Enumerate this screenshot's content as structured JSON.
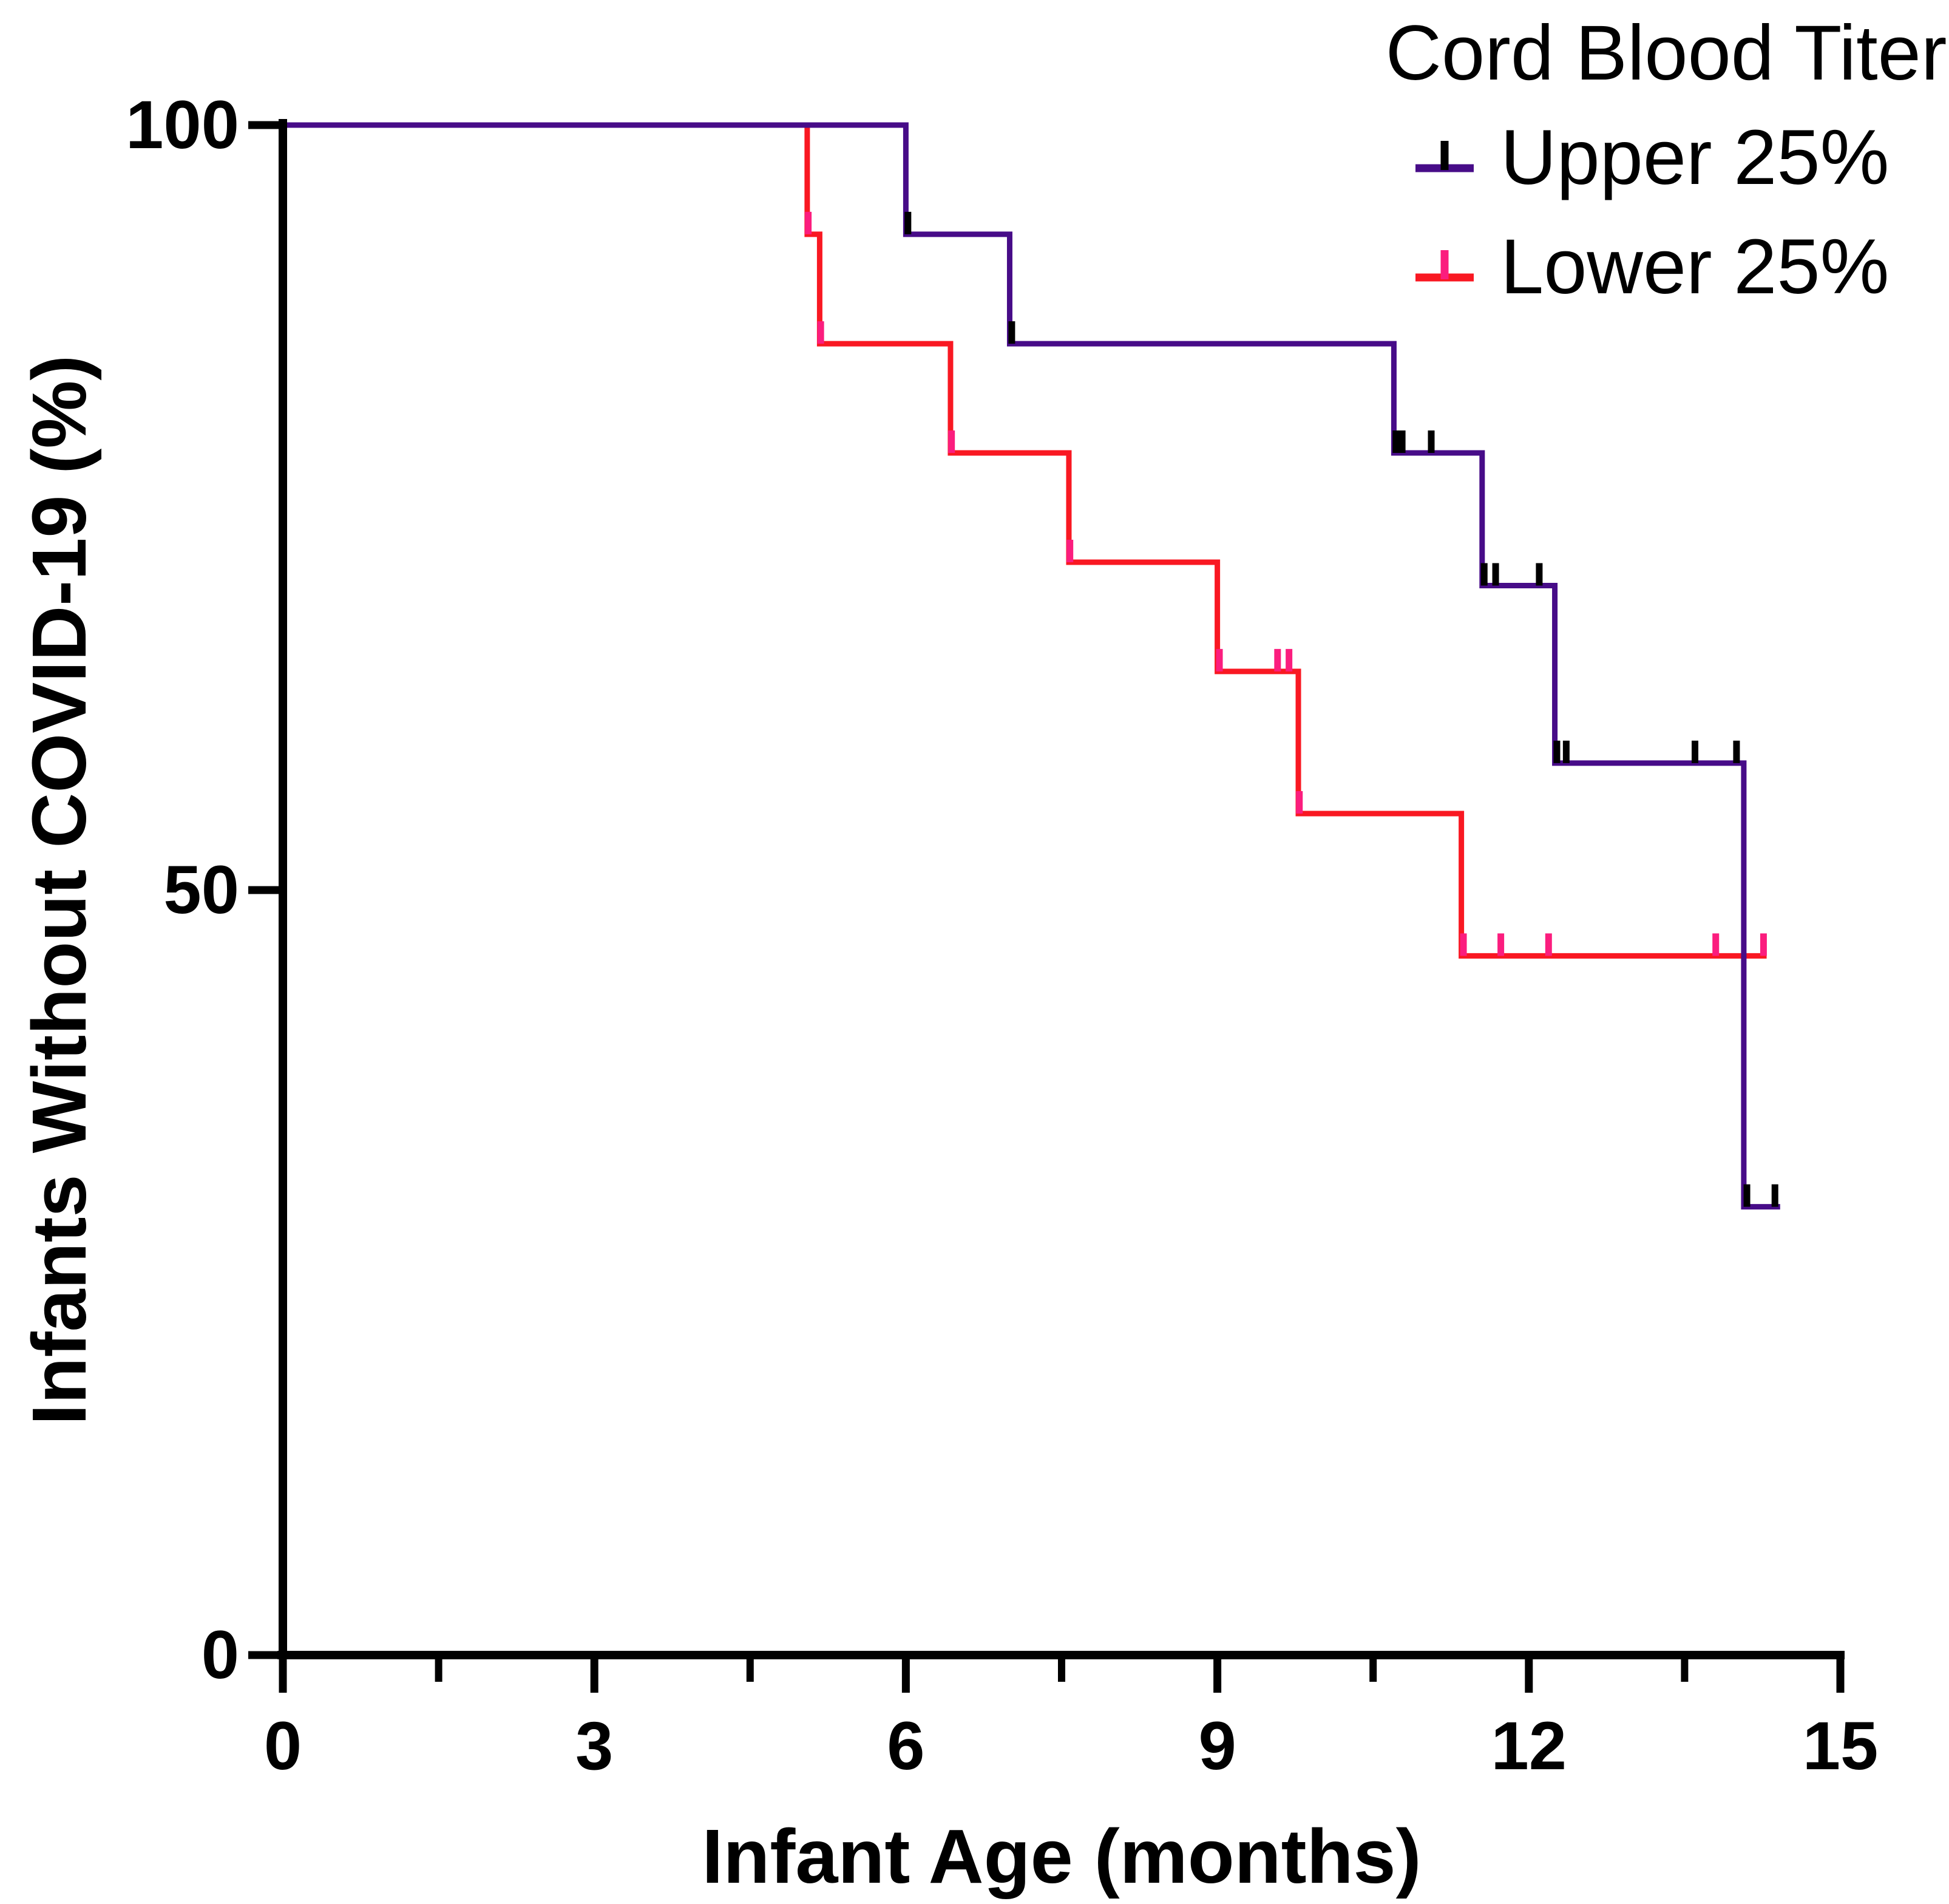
{
  "chart_data": {
    "type": "line",
    "subtype": "kaplan_meier_step_survival",
    "title": "",
    "xlabel": "Infant Age (months)",
    "ylabel": "Infants Without COVID-19 (%)",
    "xlim": [
      0,
      15
    ],
    "ylim": [
      0,
      100
    ],
    "grid": false,
    "axis_color": "#000000",
    "x_major_ticks": [
      0,
      3,
      6,
      9,
      12,
      15
    ],
    "x_major_tick_labels": [
      "0",
      "3",
      "6",
      "9",
      "12",
      "15"
    ],
    "x_minor_ticks": [
      1.5,
      4.5,
      7.5,
      10.5,
      13.5
    ],
    "y_ticks": [
      100,
      50,
      0
    ],
    "y_tick_labels": [
      "100",
      "50",
      "0"
    ],
    "legend": {
      "title": "Cord Blood Titer",
      "position": "top-right",
      "entries": [
        {
          "label": "Upper 25%",
          "line_color": "#470C88",
          "censor_tick_color": "#000000"
        },
        {
          "label": "Lower 25%",
          "line_color": "#F91822",
          "censor_tick_color": "#FB1D7E"
        }
      ]
    },
    "series": [
      {
        "name": "Upper 25%",
        "color": "#470C88",
        "censor_color": "#000000",
        "steps_month_percent": [
          [
            0,
            100
          ],
          [
            6.0,
            92.86
          ],
          [
            7.0,
            85.71
          ],
          [
            10.7,
            78.57
          ],
          [
            11.55,
            69.9
          ],
          [
            12.25,
            58.3
          ],
          [
            14.07,
            29.3
          ]
        ],
        "end_month": 14.42,
        "censor_marks_month_percent": [
          [
            6.02,
            92.86
          ],
          [
            7.02,
            85.71
          ],
          [
            10.72,
            78.57
          ],
          [
            10.78,
            78.57
          ],
          [
            11.06,
            78.57
          ],
          [
            11.57,
            69.9
          ],
          [
            11.68,
            69.9
          ],
          [
            12.1,
            69.9
          ],
          [
            12.27,
            58.3
          ],
          [
            12.36,
            58.3
          ],
          [
            13.6,
            58.3
          ],
          [
            14.0,
            58.3
          ],
          [
            14.1,
            29.3
          ],
          [
            14.37,
            29.3
          ]
        ]
      },
      {
        "name": "Lower 25%",
        "color": "#F91822",
        "censor_color": "#FB1D7E",
        "steps_month_percent": [
          [
            0,
            100
          ],
          [
            5.05,
            92.86
          ],
          [
            5.17,
            85.71
          ],
          [
            6.43,
            78.57
          ],
          [
            7.57,
            71.43
          ],
          [
            9.0,
            64.29
          ],
          [
            9.78,
            55.0
          ],
          [
            11.35,
            45.7
          ]
        ],
        "end_month": 14.29,
        "censor_marks_month_percent": [
          [
            5.06,
            92.86
          ],
          [
            5.18,
            85.71
          ],
          [
            6.44,
            78.57
          ],
          [
            7.58,
            71.43
          ],
          [
            9.02,
            64.29
          ],
          [
            9.58,
            64.29
          ],
          [
            9.69,
            64.29
          ],
          [
            9.79,
            55.0
          ],
          [
            11.37,
            45.7
          ],
          [
            11.73,
            45.7
          ],
          [
            12.19,
            45.7
          ],
          [
            13.8,
            45.7
          ],
          [
            14.26,
            45.7
          ]
        ]
      }
    ]
  }
}
